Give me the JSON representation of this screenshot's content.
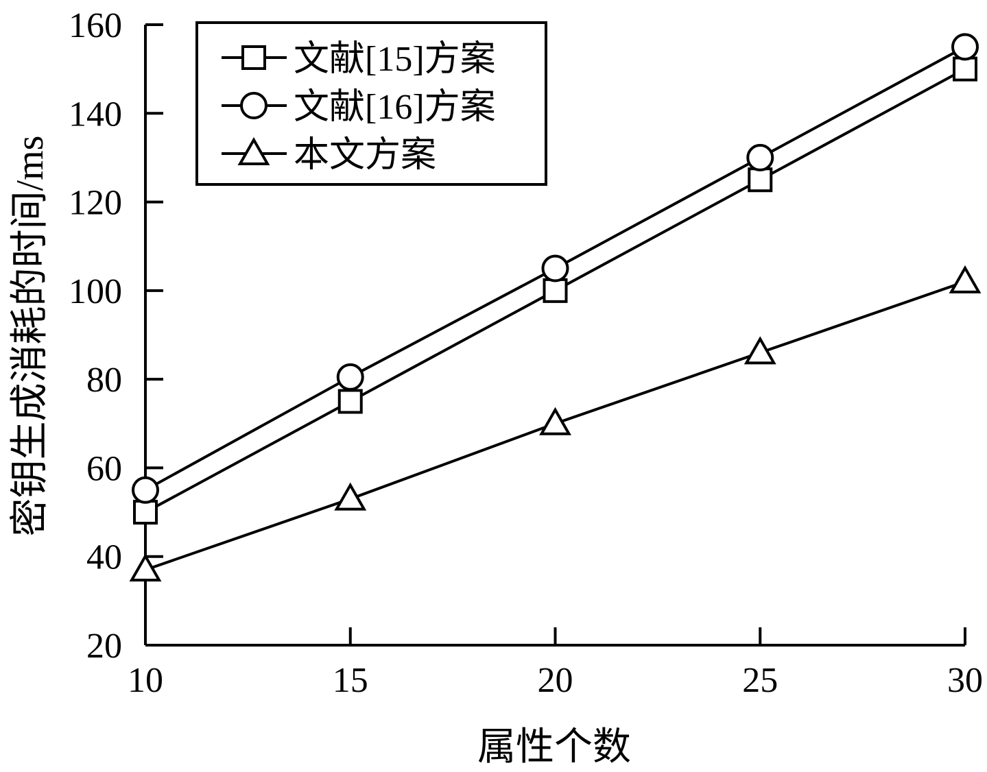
{
  "chart_data": {
    "type": "line",
    "title": "",
    "xlabel": "属性个数",
    "ylabel": "密钥生成消耗的时间/ms",
    "xlim": [
      10,
      30
    ],
    "ylim": [
      20,
      160
    ],
    "x": [
      10,
      15,
      20,
      25,
      30
    ],
    "xticks": [
      "10",
      "15",
      "20",
      "25",
      "30"
    ],
    "yticks": [
      "20",
      "40",
      "60",
      "80",
      "100",
      "120",
      "140",
      "160"
    ],
    "grid": false,
    "legend_position": "top-left",
    "series": [
      {
        "name": "文献[15]方案",
        "marker": "square",
        "values": [
          50,
          75,
          100,
          125,
          150
        ]
      },
      {
        "name": "文献[16]方案",
        "marker": "circle",
        "values": [
          55,
          80.5,
          105,
          130,
          155
        ]
      },
      {
        "name": "本文方案",
        "marker": "triangle",
        "values": [
          37,
          53,
          70,
          86,
          102
        ]
      }
    ]
  }
}
